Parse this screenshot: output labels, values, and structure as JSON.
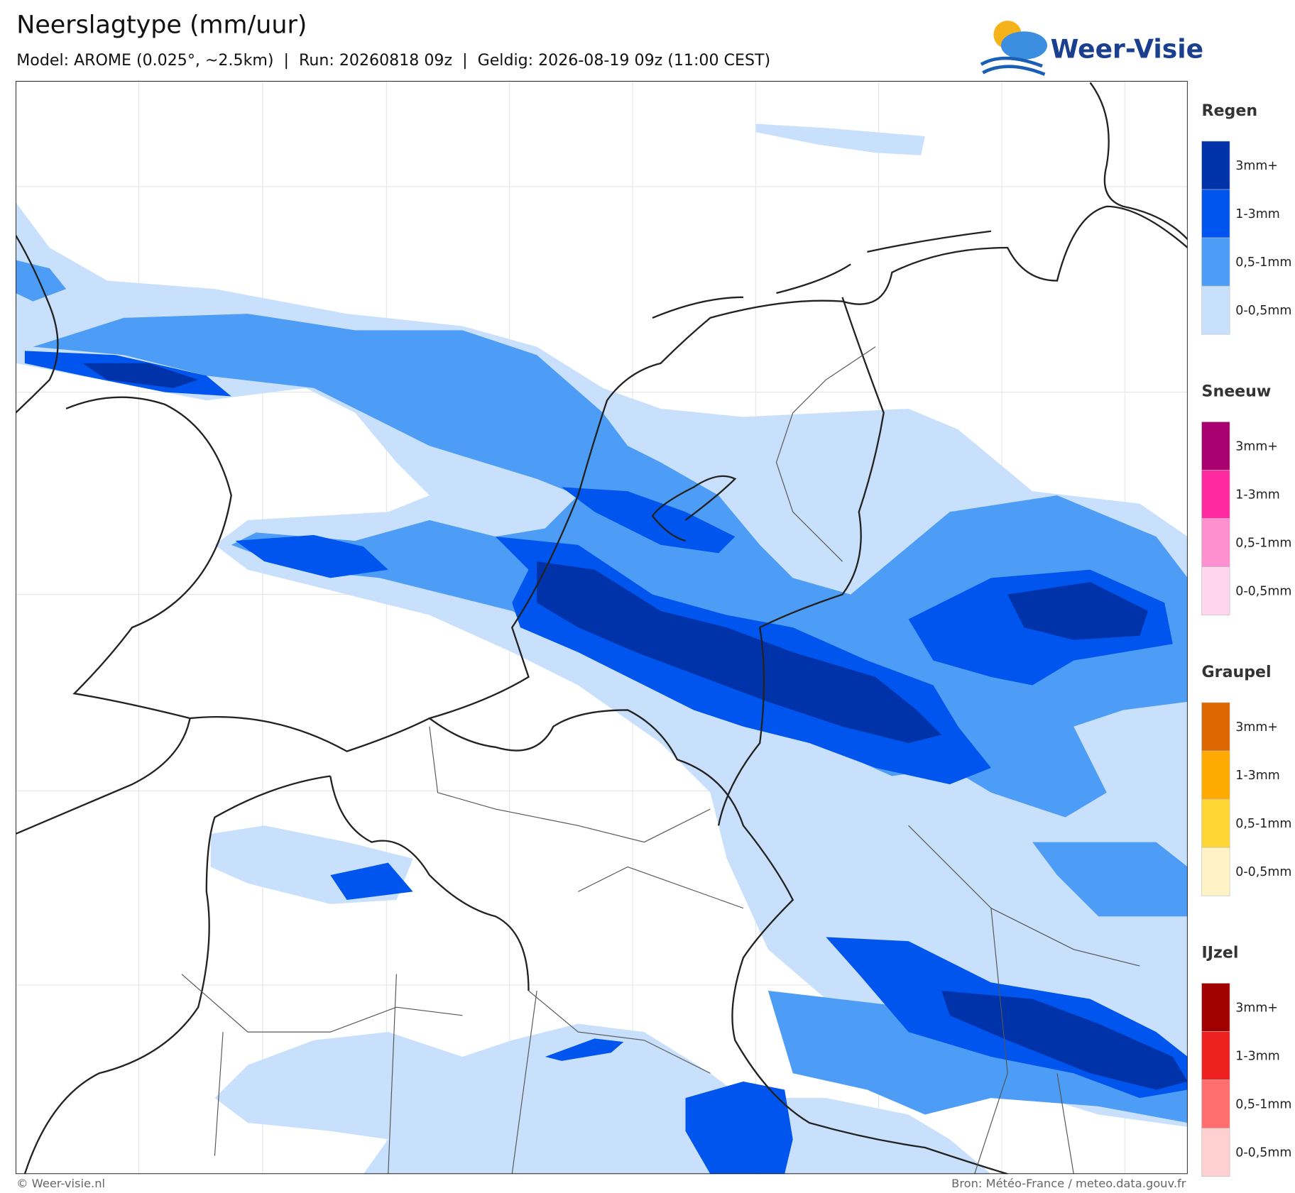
{
  "header": {
    "title": "Neerslagtype (mm/uur)",
    "subtitle": "Model: AROME (0.025°, ~2.5km)  |  Run: 20260818 09z  |  Geldig: 2026-08-19 09z (11:00 CEST)",
    "logo": "Weer-Visie"
  },
  "legend": [
    {
      "title": "Regen",
      "items": [
        {
          "label": "3mm+",
          "color": "#0033aa"
        },
        {
          "label": "1-3mm",
          "color": "#0055ee"
        },
        {
          "label": "0,5-1mm",
          "color": "#4d9cf5"
        },
        {
          "label": "0-0,5mm",
          "color": "#c8e0fb"
        }
      ]
    },
    {
      "title": "Sneeuw",
      "items": [
        {
          "label": "3mm+",
          "color": "#a8006e"
        },
        {
          "label": "1-3mm",
          "color": "#ff2aa0"
        },
        {
          "label": "0,5-1mm",
          "color": "#ff8fcf"
        },
        {
          "label": "0-0,5mm",
          "color": "#ffd6ee"
        }
      ]
    },
    {
      "title": "Graupel",
      "items": [
        {
          "label": "3mm+",
          "color": "#dd6600"
        },
        {
          "label": "1-3mm",
          "color": "#ffaa00"
        },
        {
          "label": "0,5-1mm",
          "color": "#ffd633"
        },
        {
          "label": "0-0,5mm",
          "color": "#fff2c4"
        }
      ]
    },
    {
      "title": "IJzel",
      "items": [
        {
          "label": "3mm+",
          "color": "#a00000"
        },
        {
          "label": "1-3mm",
          "color": "#ee2020"
        },
        {
          "label": "0,5-1mm",
          "color": "#ff6e6e"
        },
        {
          "label": "0-0,5mm",
          "color": "#ffd0d0"
        }
      ]
    }
  ],
  "footer": {
    "left": "© Weer-visie.nl",
    "right": "Bron: Météo-France / meteo.data.gouv.fr"
  }
}
